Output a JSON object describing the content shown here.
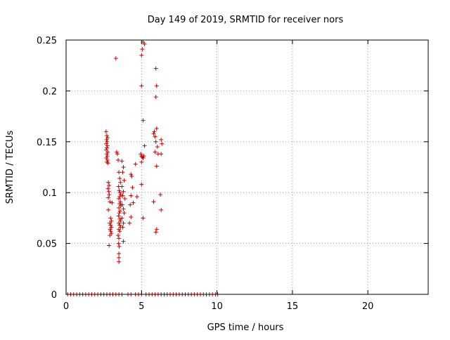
{
  "chart_data": {
    "type": "scatter",
    "title": "Day 149 of 2019, SRMTID for receiver nors",
    "xlabel": "GPS time / hours",
    "ylabel": "SRMTID / TECUs",
    "xlim": [
      0,
      24
    ],
    "ylim": [
      0,
      0.25
    ],
    "xticks": [
      0,
      5,
      10,
      15,
      20
    ],
    "xtick_labels": [
      "0",
      "5",
      "10",
      "15",
      "20"
    ],
    "yticks": [
      0,
      0.05,
      0.1,
      0.15,
      0.2,
      0.25
    ],
    "ytick_labels": [
      "0",
      "0.05",
      "0.1",
      "0.15",
      "0.2",
      "0.25"
    ],
    "grid": true,
    "marker": "plus",
    "color": "#cc0000",
    "series": [
      {
        "name": "SRMTID",
        "points": [
          [
            2.65,
            0.16
          ],
          [
            2.7,
            0.156
          ],
          [
            2.75,
            0.154
          ],
          [
            2.68,
            0.152
          ],
          [
            2.72,
            0.15
          ],
          [
            2.66,
            0.148
          ],
          [
            2.74,
            0.146
          ],
          [
            2.7,
            0.144
          ],
          [
            2.66,
            0.142
          ],
          [
            2.76,
            0.14
          ],
          [
            2.7,
            0.138
          ],
          [
            2.73,
            0.136
          ],
          [
            2.67,
            0.134
          ],
          [
            2.75,
            0.132
          ],
          [
            2.71,
            0.13
          ],
          [
            2.78,
            0.129
          ],
          [
            2.8,
            0.11
          ],
          [
            2.85,
            0.107
          ],
          [
            2.78,
            0.104
          ],
          [
            2.83,
            0.101
          ],
          [
            2.86,
            0.098
          ],
          [
            2.8,
            0.095
          ],
          [
            2.9,
            0.091
          ],
          [
            3.05,
            0.09
          ],
          [
            2.8,
            0.083
          ],
          [
            2.95,
            0.075
          ],
          [
            3.0,
            0.072
          ],
          [
            2.9,
            0.07
          ],
          [
            2.95,
            0.068
          ],
          [
            3.0,
            0.066
          ],
          [
            2.92,
            0.064
          ],
          [
            2.96,
            0.062
          ],
          [
            3.0,
            0.06
          ],
          [
            2.9,
            0.058
          ],
          [
            2.85,
            0.048
          ],
          [
            3.3,
            0.232
          ],
          [
            3.35,
            0.14
          ],
          [
            3.4,
            0.138
          ],
          [
            3.45,
            0.132
          ],
          [
            3.5,
            0.12
          ],
          [
            3.55,
            0.114
          ],
          [
            3.6,
            0.11
          ],
          [
            3.48,
            0.106
          ],
          [
            3.52,
            0.102
          ],
          [
            3.58,
            0.1
          ],
          [
            3.62,
            0.098
          ],
          [
            3.55,
            0.096
          ],
          [
            3.5,
            0.094
          ],
          [
            3.6,
            0.091
          ],
          [
            3.55,
            0.089
          ],
          [
            3.62,
            0.087
          ],
          [
            3.5,
            0.085
          ],
          [
            3.58,
            0.082
          ],
          [
            3.52,
            0.08
          ],
          [
            3.48,
            0.077
          ],
          [
            3.56,
            0.074
          ],
          [
            3.6,
            0.072
          ],
          [
            3.5,
            0.07
          ],
          [
            3.55,
            0.068
          ],
          [
            3.62,
            0.066
          ],
          [
            3.5,
            0.064
          ],
          [
            3.55,
            0.062
          ],
          [
            3.45,
            0.058
          ],
          [
            3.5,
            0.055
          ],
          [
            3.48,
            0.05
          ],
          [
            3.52,
            0.047
          ],
          [
            3.5,
            0.04
          ],
          [
            3.5,
            0.036
          ],
          [
            3.5,
            0.032
          ],
          [
            3.7,
            0.131
          ],
          [
            3.8,
            0.125
          ],
          [
            3.75,
            0.12
          ],
          [
            3.85,
            0.112
          ],
          [
            3.7,
            0.106
          ],
          [
            3.8,
            0.101
          ],
          [
            3.75,
            0.097
          ],
          [
            3.9,
            0.094
          ],
          [
            3.72,
            0.088
          ],
          [
            3.8,
            0.084
          ],
          [
            3.85,
            0.08
          ],
          [
            3.7,
            0.075
          ],
          [
            3.8,
            0.07
          ],
          [
            3.75,
            0.066
          ],
          [
            3.8,
            0.052
          ],
          [
            4.3,
            0.118
          ],
          [
            4.35,
            0.116
          ],
          [
            4.4,
            0.105
          ],
          [
            4.3,
            0.097
          ],
          [
            4.25,
            0.088
          ],
          [
            4.45,
            0.09
          ],
          [
            4.3,
            0.076
          ],
          [
            4.2,
            0.07
          ],
          [
            4.6,
            0.128
          ],
          [
            4.7,
            0.096
          ],
          [
            5.0,
            0.205
          ],
          [
            5.0,
            0.235
          ],
          [
            5.05,
            0.241
          ],
          [
            5.1,
            0.248
          ],
          [
            5.2,
            0.246
          ],
          [
            5.1,
            0.171
          ],
          [
            4.95,
            0.138
          ],
          [
            5.0,
            0.136
          ],
          [
            5.05,
            0.135
          ],
          [
            5.1,
            0.134
          ],
          [
            5.0,
            0.13
          ],
          [
            5.15,
            0.136
          ],
          [
            5.2,
            0.146
          ],
          [
            5.0,
            0.108
          ],
          [
            5.1,
            0.075
          ],
          [
            5.8,
            0.158
          ],
          [
            5.9,
            0.155
          ],
          [
            6.0,
            0.163
          ],
          [
            5.85,
            0.16
          ],
          [
            5.95,
            0.15
          ],
          [
            6.05,
            0.145
          ],
          [
            6.1,
            0.138
          ],
          [
            5.9,
            0.14
          ],
          [
            6.3,
            0.152
          ],
          [
            6.35,
            0.148
          ],
          [
            6.3,
            0.138
          ],
          [
            6.0,
            0.126
          ],
          [
            5.95,
            0.222
          ],
          [
            6.0,
            0.205
          ],
          [
            5.95,
            0.194
          ],
          [
            6.25,
            0.098
          ],
          [
            5.8,
            0.091
          ],
          [
            6.3,
            0.083
          ],
          [
            6.0,
            0.064
          ],
          [
            5.95,
            0.061
          ],
          [
            0.1,
            0
          ],
          [
            0.3,
            0
          ],
          [
            0.5,
            0
          ],
          [
            0.7,
            0
          ],
          [
            0.9,
            0
          ],
          [
            1.1,
            0
          ],
          [
            1.3,
            0
          ],
          [
            1.5,
            0
          ],
          [
            1.7,
            0
          ],
          [
            1.9,
            0
          ],
          [
            2.1,
            0
          ],
          [
            2.3,
            0
          ],
          [
            2.5,
            0
          ],
          [
            2.7,
            0
          ],
          [
            2.9,
            0
          ],
          [
            3.1,
            0
          ],
          [
            3.3,
            0
          ],
          [
            3.5,
            0
          ],
          [
            3.7,
            0
          ],
          [
            4.1,
            0
          ],
          [
            4.3,
            0
          ],
          [
            4.6,
            0
          ],
          [
            4.8,
            0
          ],
          [
            5.0,
            0
          ],
          [
            5.3,
            0
          ],
          [
            5.5,
            0
          ],
          [
            5.7,
            0
          ],
          [
            5.9,
            0
          ],
          [
            6.1,
            0
          ],
          [
            6.3,
            0
          ],
          [
            6.5,
            0
          ],
          [
            6.7,
            0
          ],
          [
            6.9,
            0
          ],
          [
            7.1,
            0
          ],
          [
            7.3,
            0
          ],
          [
            7.5,
            0
          ],
          [
            7.7,
            0
          ],
          [
            7.9,
            0
          ],
          [
            8.1,
            0
          ],
          [
            8.3,
            0
          ],
          [
            8.5,
            0
          ],
          [
            8.7,
            0
          ],
          [
            8.9,
            0
          ],
          [
            9.1,
            0
          ],
          [
            9.3,
            0
          ],
          [
            9.5,
            0
          ],
          [
            9.7,
            0
          ],
          [
            9.9,
            0
          ],
          [
            10.05,
            0
          ]
        ]
      }
    ]
  }
}
